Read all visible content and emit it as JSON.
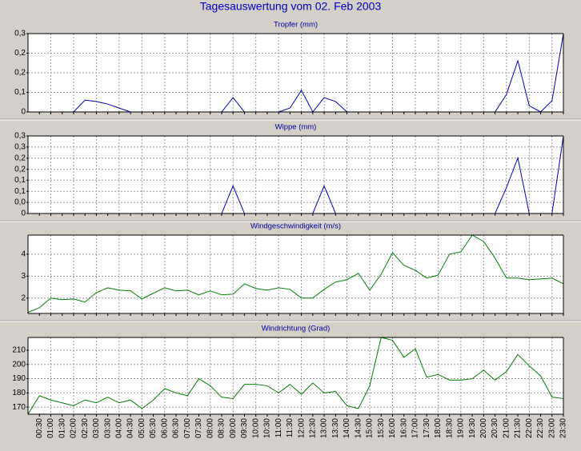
{
  "title": "Tagesauswertung vom 02. Feb 2003",
  "chart_data": [
    {
      "type": "line",
      "title": "Tropfer (mm)",
      "color": "#0000c0",
      "grid": true,
      "ylim": [
        0,
        0.3
      ],
      "yticks": [
        {
          "value": 0.3,
          "label": "0,3"
        },
        {
          "value": 0.225,
          "label": "0,2"
        },
        {
          "value": 0.15,
          "label": "0,2"
        },
        {
          "value": 0.075,
          "label": "0,1"
        },
        0
      ],
      "values": [
        0,
        0,
        0,
        0,
        0,
        0.045,
        0.04,
        0.03,
        0.015,
        0,
        0,
        0,
        0,
        0,
        0,
        0,
        0,
        0,
        0.055,
        0,
        0,
        0,
        0,
        0.015,
        0.083,
        0,
        0.055,
        0.04,
        0,
        0,
        0,
        0,
        0,
        0,
        0,
        0,
        0,
        0,
        0,
        0,
        0,
        0,
        0.067,
        0.196,
        0.024,
        0,
        0.043,
        0.3
      ]
    },
    {
      "type": "line",
      "title": "Wippe (mm)",
      "color": "#0000c0",
      "grid": true,
      "ylim": [
        0,
        0.3
      ],
      "yticks": [
        {
          "value": 0.3,
          "label": "0,3"
        },
        {
          "value": 0.257,
          "label": "0,3"
        },
        {
          "value": 0.214,
          "label": "0,2"
        },
        {
          "value": 0.171,
          "label": "0,2"
        },
        {
          "value": 0.129,
          "label": "0,1"
        },
        {
          "value": 0.086,
          "label": "0,1"
        },
        {
          "value": 0.043,
          "label": "0,0"
        },
        0
      ],
      "values": [
        0,
        0,
        0,
        0,
        0,
        0,
        0,
        0,
        0,
        0,
        0,
        0,
        0,
        0,
        0,
        0,
        0,
        0,
        0.107,
        0,
        0,
        0,
        0,
        0,
        0,
        0,
        0.107,
        0,
        0,
        0,
        0,
        0,
        0,
        0,
        0,
        0,
        0,
        0,
        0,
        0,
        0,
        0,
        0.1,
        0.215,
        0,
        0,
        0,
        0.3
      ]
    },
    {
      "type": "line",
      "title": "Windgeschwindigkeit (m/s)",
      "color": "#008000",
      "grid": true,
      "ylim": [
        1.3,
        4.87
      ],
      "yticks": [
        2,
        3,
        4
      ],
      "values": [
        1.35,
        1.56,
        2.0,
        1.93,
        1.96,
        1.82,
        2.25,
        2.47,
        2.36,
        2.33,
        1.96,
        2.22,
        2.47,
        2.33,
        2.36,
        2.15,
        2.33,
        2.15,
        2.18,
        2.65,
        2.44,
        2.36,
        2.47,
        2.4,
        2.0,
        2.0,
        2.4,
        2.73,
        2.84,
        3.13,
        2.36,
        3.09,
        4.07,
        3.49,
        3.27,
        2.91,
        3.05,
        4.0,
        4.11,
        4.87,
        4.58,
        3.82,
        2.91,
        2.91,
        2.84,
        2.87,
        2.91,
        2.65
      ]
    },
    {
      "type": "line",
      "title": "Windrichtung (Grad)",
      "color": "#008000",
      "grid": true,
      "ylim": [
        165,
        219
      ],
      "yticks": [
        170,
        180,
        190,
        200,
        210
      ],
      "categories": [
        null,
        "00:30",
        "01:00",
        "01:30",
        "02:00",
        "02:30",
        "03:00",
        "03:30",
        "04:00",
        "04:30",
        "05:00",
        "05:30",
        "06:00",
        "06:30",
        "07:00",
        "07:30",
        "08:00",
        "08:30",
        "09:00",
        "09:30",
        "10:00",
        "10:30",
        "11:00",
        "11:30",
        "12:00",
        "12:30",
        "13:00",
        "13:30",
        "14:00",
        "14:30",
        "15:00",
        "15:30",
        "16:00",
        "16:30",
        "17:00",
        "17:30",
        "18:00",
        "18:30",
        "19:00",
        "19:30",
        "20:00",
        "20:30",
        "21:00",
        "21:30",
        "22:00",
        "22:30",
        "23:00",
        "23:30"
      ],
      "values": [
        165,
        178,
        175,
        173,
        171,
        175,
        173,
        177,
        173,
        175,
        169,
        175,
        183,
        180,
        178,
        190,
        185,
        177,
        176,
        186,
        186,
        185,
        180,
        186,
        179,
        187,
        180,
        181,
        171,
        169,
        185,
        219,
        217,
        205,
        211,
        191,
        193,
        189,
        189,
        190,
        196,
        189,
        195,
        207,
        199,
        192,
        177,
        176
      ]
    }
  ]
}
